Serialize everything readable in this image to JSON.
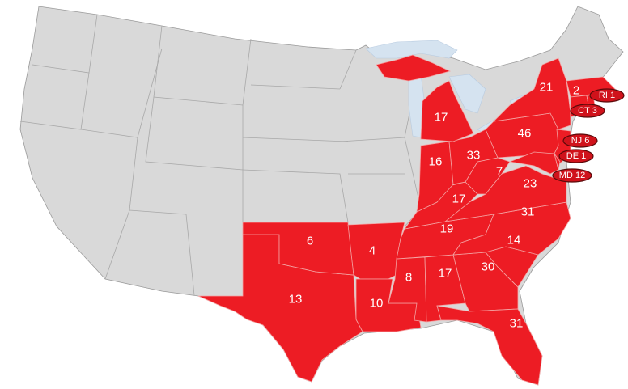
{
  "colors": {
    "highlight": "#ed1c24",
    "other_states": "#d9d9d9",
    "lakes": "#d5e3f0",
    "label_text": "#ffffff"
  },
  "state_values": {
    "NY": "21",
    "MA": "2",
    "PA": "46",
    "MI": "17",
    "IN": "16",
    "OH": "33",
    "WV": "7",
    "VA": "23",
    "KY": "17",
    "NC": "31",
    "TN": "19",
    "SC": "14",
    "OK": "6",
    "AR": "4",
    "MS": "8",
    "AL": "17",
    "GA": "30",
    "TX": "13",
    "LA": "10",
    "FL": "31"
  },
  "callouts": [
    {
      "state": "RI",
      "text": "RI 1"
    },
    {
      "state": "CT",
      "text": "CT 3"
    },
    {
      "state": "NJ",
      "text": "NJ 6"
    },
    {
      "state": "DE",
      "text": "DE 1"
    },
    {
      "state": "MD",
      "text": "MD 12"
    }
  ]
}
